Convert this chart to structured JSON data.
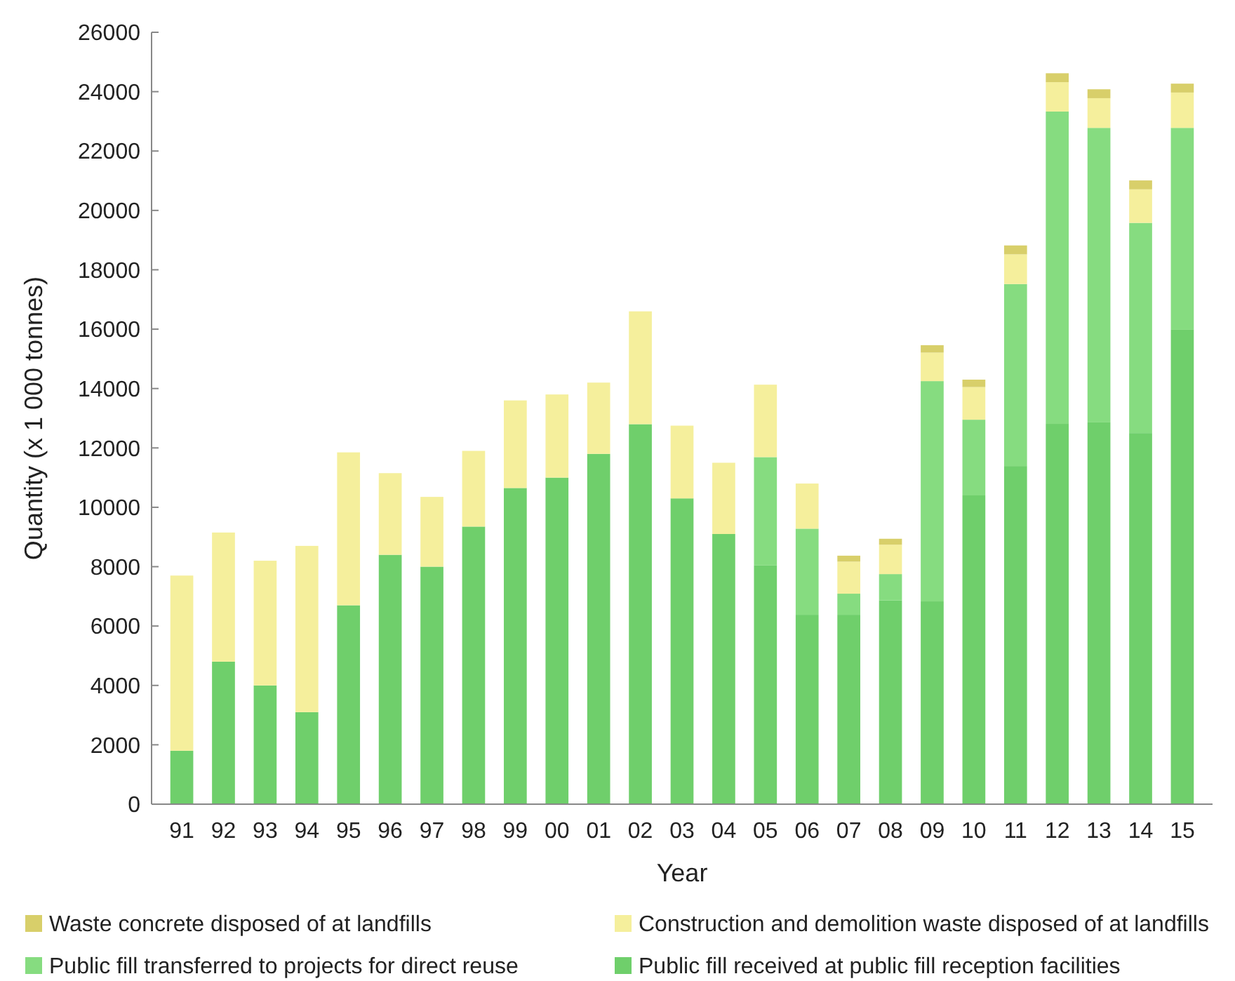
{
  "chart_data": {
    "type": "bar",
    "stacked": true,
    "xlabel": "Year",
    "ylabel": "Quantity (x 1 000 tonnes)",
    "categories": [
      "91",
      "92",
      "93",
      "94",
      "95",
      "96",
      "97",
      "98",
      "99",
      "00",
      "01",
      "02",
      "03",
      "04",
      "05",
      "06",
      "07",
      "08",
      "09",
      "10",
      "11",
      "12",
      "13",
      "14",
      "15"
    ],
    "series": [
      {
        "name": "Public fill received at public fill reception facilities",
        "color": "#6fcf6b",
        "values": [
          1800,
          4800,
          4000,
          3100,
          6700,
          8400,
          8000,
          9350,
          10650,
          11000,
          11800,
          12800,
          10300,
          9100,
          8040,
          6380,
          6380,
          6860,
          6830,
          10400,
          11390,
          12810,
          12860,
          12500,
          15980
        ]
      },
      {
        "name": "Public fill transferred to projects for direct reuse",
        "color": "#86dc80",
        "values": [
          null,
          null,
          null,
          null,
          null,
          null,
          null,
          null,
          null,
          null,
          null,
          null,
          null,
          null,
          3650,
          2900,
          710,
          890,
          7420,
          2550,
          6130,
          10520,
          9920,
          7080,
          6800
        ]
      },
      {
        "name": "Construction and demolition waste disposed of at landfills",
        "color": "#f5ef9c",
        "values": [
          5900,
          4350,
          4200,
          5600,
          5150,
          2750,
          2350,
          2550,
          2950,
          2800,
          2400,
          3800,
          2450,
          2400,
          2440,
          1520,
          1080,
          990,
          960,
          1100,
          1000,
          990,
          1000,
          1130,
          1190
        ]
      },
      {
        "name": "Waste concrete disposed of at landfills",
        "color": "#d8cf6a",
        "values": [
          null,
          null,
          null,
          null,
          null,
          null,
          null,
          null,
          null,
          null,
          null,
          null,
          null,
          null,
          null,
          null,
          200,
          200,
          250,
          250,
          300,
          300,
          300,
          300,
          300
        ]
      }
    ],
    "ylim": [
      0,
      26000
    ],
    "yticks": [
      0,
      2000,
      4000,
      6000,
      8000,
      10000,
      12000,
      14000,
      16000,
      18000,
      20000,
      22000,
      24000,
      26000
    ],
    "legend": "bottom",
    "grid": false
  }
}
